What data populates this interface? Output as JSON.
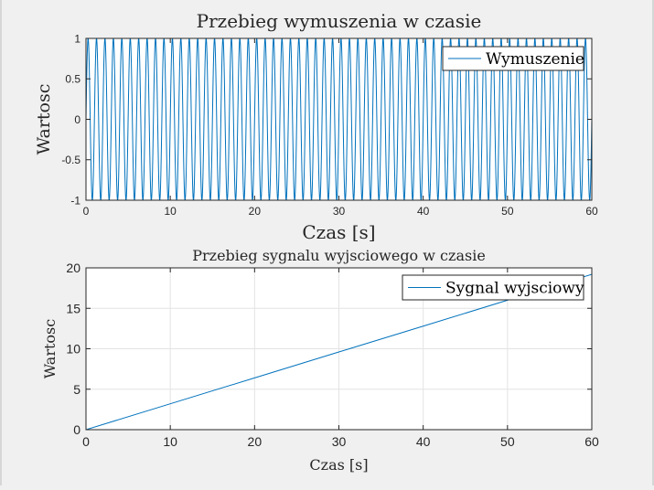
{
  "chart_data": [
    {
      "type": "line",
      "title": "Przebieg wymuszenia w czasie",
      "xlabel": "Czas [s]",
      "ylabel": "Wartosc",
      "xlim": [
        0,
        60
      ],
      "ylim": [
        -1,
        1
      ],
      "xticks": [
        "0",
        "10",
        "20",
        "30",
        "40",
        "50",
        "60"
      ],
      "yticks": [
        "-1",
        "-0.5",
        "0",
        "0.5",
        "1"
      ],
      "grid": false,
      "legend_position": "top-right",
      "series": [
        {
          "name": "Wymuszenie",
          "color": "#0072bd",
          "function": "sine",
          "amplitude": 1,
          "frequency_hz": 1,
          "x_start": 0,
          "x_end": 60
        }
      ]
    },
    {
      "type": "line",
      "title": "Przebieg sygnalu wyjsciowego w czasie",
      "xlabel": "Czas [s]",
      "ylabel": "Wartosc",
      "xlim": [
        0,
        60
      ],
      "ylim": [
        0,
        20
      ],
      "xticks": [
        "0",
        "10",
        "20",
        "30",
        "40",
        "50",
        "60"
      ],
      "yticks": [
        "0",
        "5",
        "10",
        "15",
        "20"
      ],
      "grid": true,
      "legend_position": "top-right",
      "series": [
        {
          "name": "Sygnal wyjsciowy",
          "color": "#0072bd",
          "x": [
            0,
            10,
            20,
            30,
            40,
            50,
            60
          ],
          "y": [
            0,
            3.2,
            6.4,
            9.6,
            12.8,
            16.0,
            19.2
          ]
        }
      ]
    }
  ]
}
